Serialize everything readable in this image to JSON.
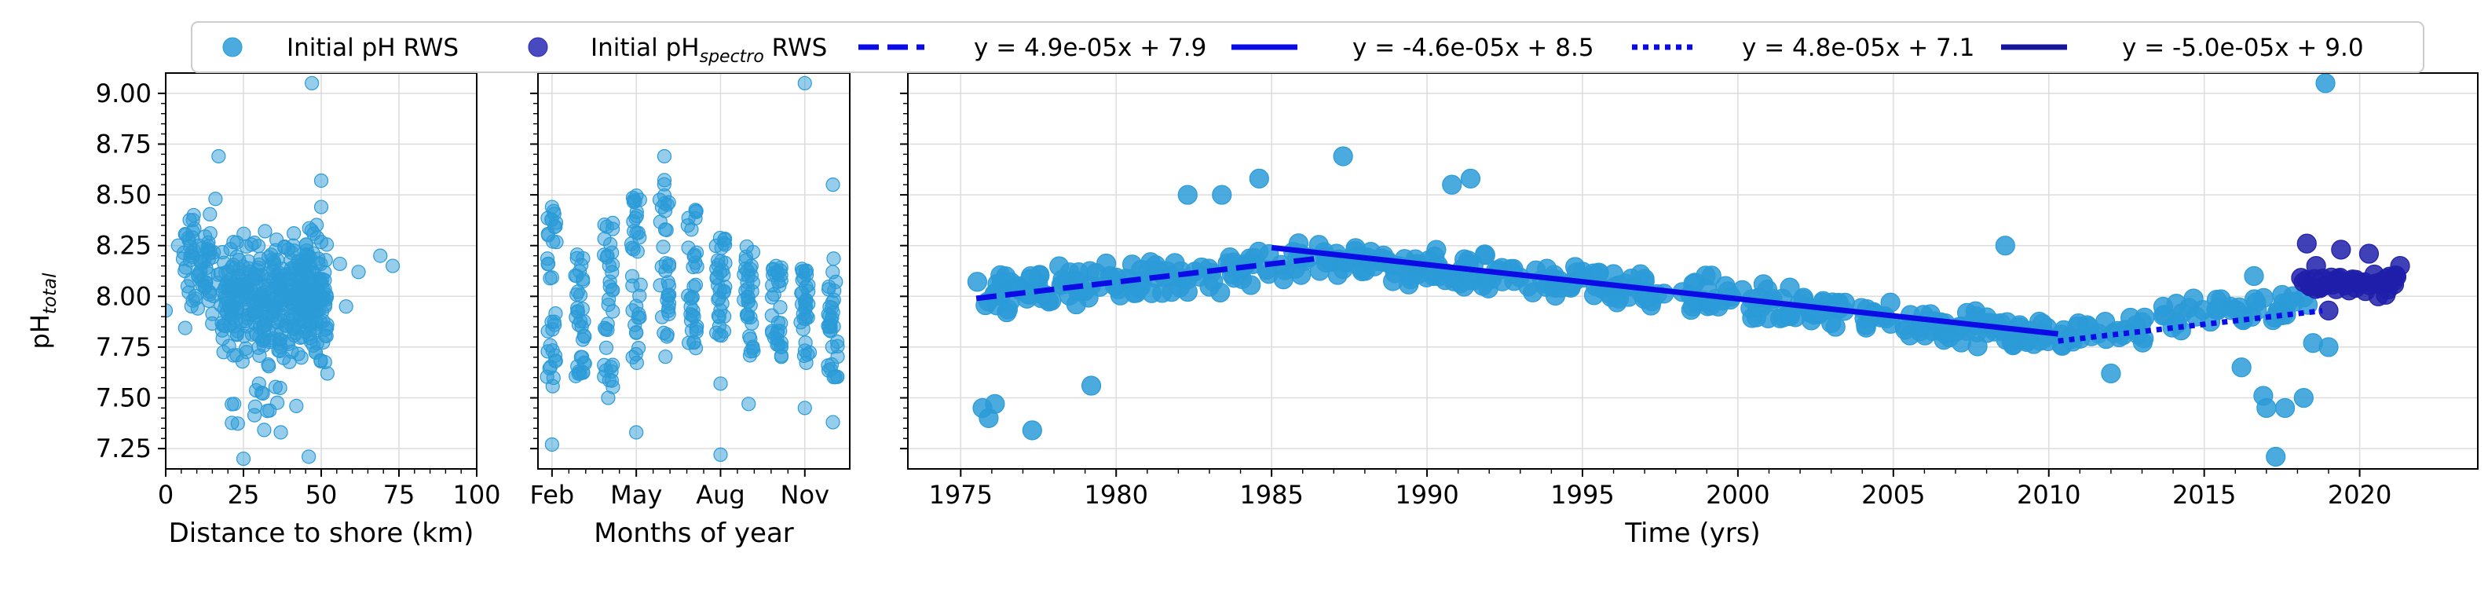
{
  "chart_data": {
    "type": "scatter",
    "ylabel": "pH",
    "ylabel_sub": "total",
    "ylim": [
      7.15,
      9.1
    ],
    "yticks": [
      "7.25",
      "7.50",
      "7.75",
      "8.00",
      "8.25",
      "8.50",
      "8.75",
      "9.00"
    ],
    "grid": true,
    "legend": {
      "placement": "top",
      "entries": [
        {
          "label": "Initial pH RWS",
          "kind": "marker",
          "color": "#2b9bd8"
        },
        {
          "label": "Initial pH",
          "label_sub": "spectro",
          "label_tail": " RWS",
          "kind": "marker",
          "color": "#2a2ab5"
        },
        {
          "label": "y = 4.9e-05x + 7.9",
          "kind": "line",
          "style": "dashed",
          "color": "#0b0be6"
        },
        {
          "label": "y = -4.6e-05x + 8.5",
          "kind": "line",
          "style": "solid",
          "color": "#0b0be6"
        },
        {
          "label": "y = 4.8e-05x + 7.1",
          "kind": "line",
          "style": "dotted",
          "color": "#0b0be6"
        },
        {
          "label": "y = -5.0e-05x + 9.0",
          "kind": "line",
          "style": "solid",
          "color": "#16169a"
        }
      ]
    },
    "panels": [
      {
        "id": "distance",
        "xlabel": "Distance to shore (km)",
        "xlim": [
          0,
          100
        ],
        "xticks": [
          {
            "v": 0,
            "label": "0"
          },
          {
            "v": 25,
            "label": "25"
          },
          {
            "v": 50,
            "label": "50"
          },
          {
            "v": 75,
            "label": "75"
          },
          {
            "v": 100,
            "label": "100"
          }
        ],
        "color": "#2b9bd8",
        "clusters": [
          {
            "x": [
              5,
              18
            ],
            "y": [
              7.75,
              8.5
            ],
            "n": 70
          },
          {
            "x": [
              18,
              46
            ],
            "y": [
              7.6,
              8.4
            ],
            "n": 340
          },
          {
            "x": [
              44,
              52
            ],
            "y": [
              7.55,
              8.45
            ],
            "n": 110
          },
          {
            "x": [
              20,
              42
            ],
            "y": [
              7.3,
              7.6
            ],
            "n": 14
          }
        ],
        "points": [
          [
            0,
            7.93
          ],
          [
            4,
            8.25
          ],
          [
            9,
            8.4
          ],
          [
            17,
            8.69
          ],
          [
            16,
            8.48
          ],
          [
            25,
            7.2
          ],
          [
            37,
            7.33
          ],
          [
            46,
            7.21
          ],
          [
            47,
            9.05
          ],
          [
            50,
            8.57
          ],
          [
            52,
            7.62
          ],
          [
            56,
            8.16
          ],
          [
            62,
            8.12
          ],
          [
            69,
            8.2
          ],
          [
            73,
            8.15
          ],
          [
            58,
            7.95
          ],
          [
            22,
            7.47
          ],
          [
            30,
            7.57
          ],
          [
            42,
            7.46
          ],
          [
            50,
            8.44
          ]
        ]
      },
      {
        "id": "months",
        "xlabel": "Months of year",
        "xlim": [
          1.5,
          12.6
        ],
        "xticks": [
          {
            "v": 2,
            "label": "Feb"
          },
          {
            "v": 5,
            "label": "May"
          },
          {
            "v": 8,
            "label": "Aug"
          },
          {
            "v": 11,
            "label": "Nov"
          }
        ],
        "color": "#2b9bd8",
        "columns": [
          {
            "m": 2,
            "ymin": 7.55,
            "ymax": 8.42
          },
          {
            "m": 3,
            "ymin": 7.6,
            "ymax": 8.23
          },
          {
            "m": 4,
            "ymin": 7.55,
            "ymax": 8.37
          },
          {
            "m": 5,
            "ymin": 7.6,
            "ymax": 8.5
          },
          {
            "m": 6,
            "ymin": 7.7,
            "ymax": 8.6
          },
          {
            "m": 7,
            "ymin": 7.7,
            "ymax": 8.5
          },
          {
            "m": 8,
            "ymin": 7.75,
            "ymax": 8.3
          },
          {
            "m": 9,
            "ymin": 7.7,
            "ymax": 8.27
          },
          {
            "m": 10,
            "ymin": 7.7,
            "ymax": 8.17
          },
          {
            "m": 11,
            "ymin": 7.65,
            "ymax": 8.14
          },
          {
            "m": 12,
            "ymin": 7.6,
            "ymax": 8.2
          }
        ],
        "points": [
          [
            2,
            7.27
          ],
          [
            3,
            7.62
          ],
          [
            4,
            7.5
          ],
          [
            5,
            7.33
          ],
          [
            6,
            8.69
          ],
          [
            8,
            7.22
          ],
          [
            8,
            7.57
          ],
          [
            9,
            7.47
          ],
          [
            11,
            7.45
          ],
          [
            11,
            9.05
          ],
          [
            12,
            7.38
          ],
          [
            12,
            8.55
          ],
          [
            2,
            8.44
          ]
        ]
      },
      {
        "id": "time",
        "xlabel": "Time (yrs)",
        "xlim": [
          1973.3,
          2023.8
        ],
        "xticks": [
          {
            "v": 1975,
            "label": "1975"
          },
          {
            "v": 1980,
            "label": "1980"
          },
          {
            "v": 1985,
            "label": "1985"
          },
          {
            "v": 1990,
            "label": "1990"
          },
          {
            "v": 1995,
            "label": "1995"
          },
          {
            "v": 2000,
            "label": "2000"
          },
          {
            "v": 2005,
            "label": "2005"
          },
          {
            "v": 2010,
            "label": "2010"
          },
          {
            "v": 2015,
            "label": "2015"
          },
          {
            "v": 2020,
            "label": "2020"
          }
        ],
        "color": "#2b9bd8",
        "spectro_color": "#1f1faa",
        "bands": [
          {
            "x": [
              1975.5,
              1986.5
            ],
            "y0": 8.0,
            "y1": 8.17,
            "spread": 0.15,
            "n": 130
          },
          {
            "x": [
              1986.5,
              2010.5
            ],
            "y0": 8.2,
            "y1": 7.8,
            "spread": 0.13,
            "n": 300
          },
          {
            "x": [
              2010.5,
              2018.5
            ],
            "y0": 7.8,
            "y1": 7.98,
            "spread": 0.13,
            "n": 70
          }
        ],
        "spectro_band": {
          "x": [
            2018.0,
            2021.3
          ],
          "y": 8.07,
          "spread": 0.08,
          "n": 45
        },
        "points": [
          [
            1975.7,
            7.45
          ],
          [
            1975.9,
            7.4
          ],
          [
            1976.1,
            7.47
          ],
          [
            1977.3,
            7.34
          ],
          [
            1979.2,
            7.56
          ],
          [
            1984.6,
            8.58
          ],
          [
            1987.3,
            8.69
          ],
          [
            1990.8,
            8.55
          ],
          [
            1991.4,
            8.58
          ],
          [
            1982.3,
            8.5
          ],
          [
            1983.4,
            8.5
          ],
          [
            2008.6,
            8.25
          ],
          [
            2016.2,
            7.65
          ],
          [
            2016.9,
            7.51
          ],
          [
            2017.0,
            7.45
          ],
          [
            2017.3,
            7.21
          ],
          [
            2017.6,
            7.45
          ],
          [
            2018.2,
            7.5
          ],
          [
            2018.9,
            9.05
          ],
          [
            2016.6,
            8.1
          ],
          [
            2018.5,
            7.77
          ],
          [
            2019.0,
            7.75
          ],
          [
            2012.0,
            7.62
          ]
        ],
        "spectro_points": [
          [
            2018.3,
            8.26
          ],
          [
            2018.6,
            8.15
          ],
          [
            2019.4,
            8.23
          ],
          [
            2020.3,
            8.21
          ],
          [
            2021.3,
            8.15
          ],
          [
            2019.0,
            7.93
          ],
          [
            2020.6,
            8.0
          ]
        ],
        "trend_lines": [
          {
            "x": [
              1975.5,
              1986.5
            ],
            "slope_per_day": 4.9e-05,
            "style": "dashed",
            "color": "#0b0be6",
            "start_y": 7.99
          },
          {
            "x": [
              1985.0,
              2010.3
            ],
            "slope_per_day": -4.6e-05,
            "style": "solid",
            "color": "#0b0be6",
            "start_y": 8.24
          },
          {
            "x": [
              2010.3,
              2018.8
            ],
            "slope_per_day": 4.8e-05,
            "style": "dotted",
            "color": "#0b0be6",
            "start_y": 7.78
          }
        ]
      }
    ]
  }
}
